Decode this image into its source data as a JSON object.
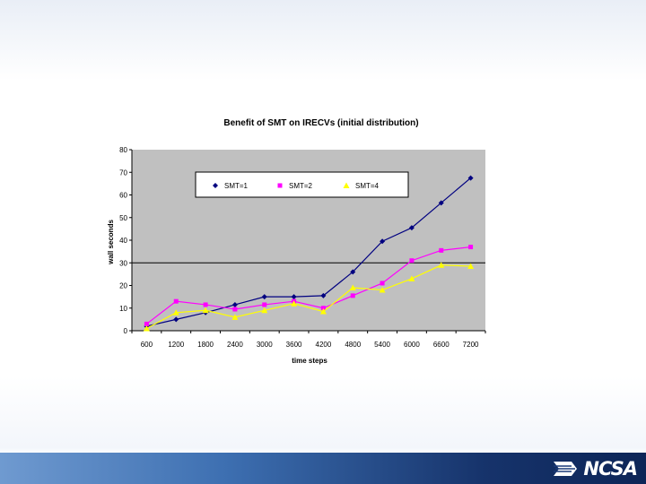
{
  "chart_data": {
    "type": "line",
    "title": "Benefit of SMT on IRECVs (initial distribution)",
    "xlabel": "time steps",
    "ylabel": "wall seconds",
    "x": [
      600,
      1200,
      1800,
      2400,
      3000,
      3600,
      4200,
      4800,
      5400,
      6000,
      6600,
      7200
    ],
    "ylim": [
      0,
      80
    ],
    "yticks": [
      0,
      10,
      20,
      30,
      40,
      50,
      60,
      70,
      80
    ],
    "grid": false,
    "reference_line": 30,
    "legend_position": "top",
    "series": [
      {
        "name": "SMT=1",
        "color": "#000080",
        "marker": "diamond",
        "values": [
          2,
          5,
          8,
          11.5,
          15,
          15,
          15.5,
          26,
          39.5,
          45.5,
          56.5,
          67.5
        ]
      },
      {
        "name": "SMT=2",
        "color": "#ff00ff",
        "marker": "square",
        "values": [
          3,
          13,
          11.5,
          9.5,
          11.5,
          13,
          10,
          15.5,
          21,
          31,
          35.5,
          37
        ]
      },
      {
        "name": "SMT=4",
        "color": "#ffff00",
        "marker": "triangle",
        "values": [
          1,
          8,
          9,
          6,
          9,
          12,
          8.5,
          19,
          18,
          23,
          29,
          28.5
        ]
      }
    ]
  },
  "colors": {
    "plot_background": "#c0c0c0",
    "footer_dark": "#0d2557",
    "footer_light": "#6f9ad0"
  },
  "footer": {
    "logo_text": "NCSA",
    "logo_icon": "ncsa-logo-icon"
  }
}
